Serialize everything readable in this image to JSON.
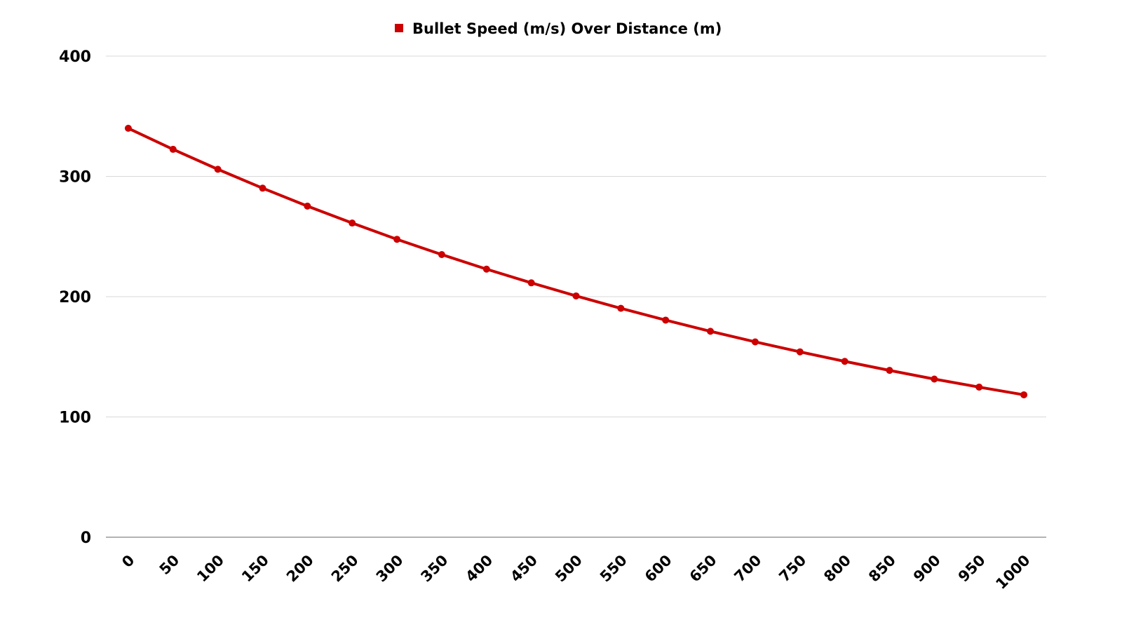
{
  "chart_data": {
    "type": "line",
    "title": "",
    "xlabel": "",
    "ylabel": "",
    "legend_position": "top",
    "grid": true,
    "ylim": [
      0,
      400
    ],
    "yticks": [
      "0",
      "100",
      "200",
      "300",
      "400"
    ],
    "categories": [
      "0",
      "50",
      "100",
      "150",
      "200",
      "250",
      "300",
      "350",
      "400",
      "450",
      "500",
      "550",
      "600",
      "650",
      "700",
      "750",
      "800",
      "850",
      "900",
      "950",
      "1000"
    ],
    "series": [
      {
        "name": "Bullet Speed (m/s) Over Distance (m)",
        "color": "#cc0000",
        "values": [
          340,
          322.5,
          305.9,
          290.2,
          275.3,
          261.2,
          247.7,
          235.0,
          222.9,
          211.5,
          200.6,
          190.3,
          180.5,
          171.2,
          162.4,
          154.1,
          146.2,
          138.7,
          131.5,
          124.8,
          118.4
        ]
      }
    ]
  }
}
